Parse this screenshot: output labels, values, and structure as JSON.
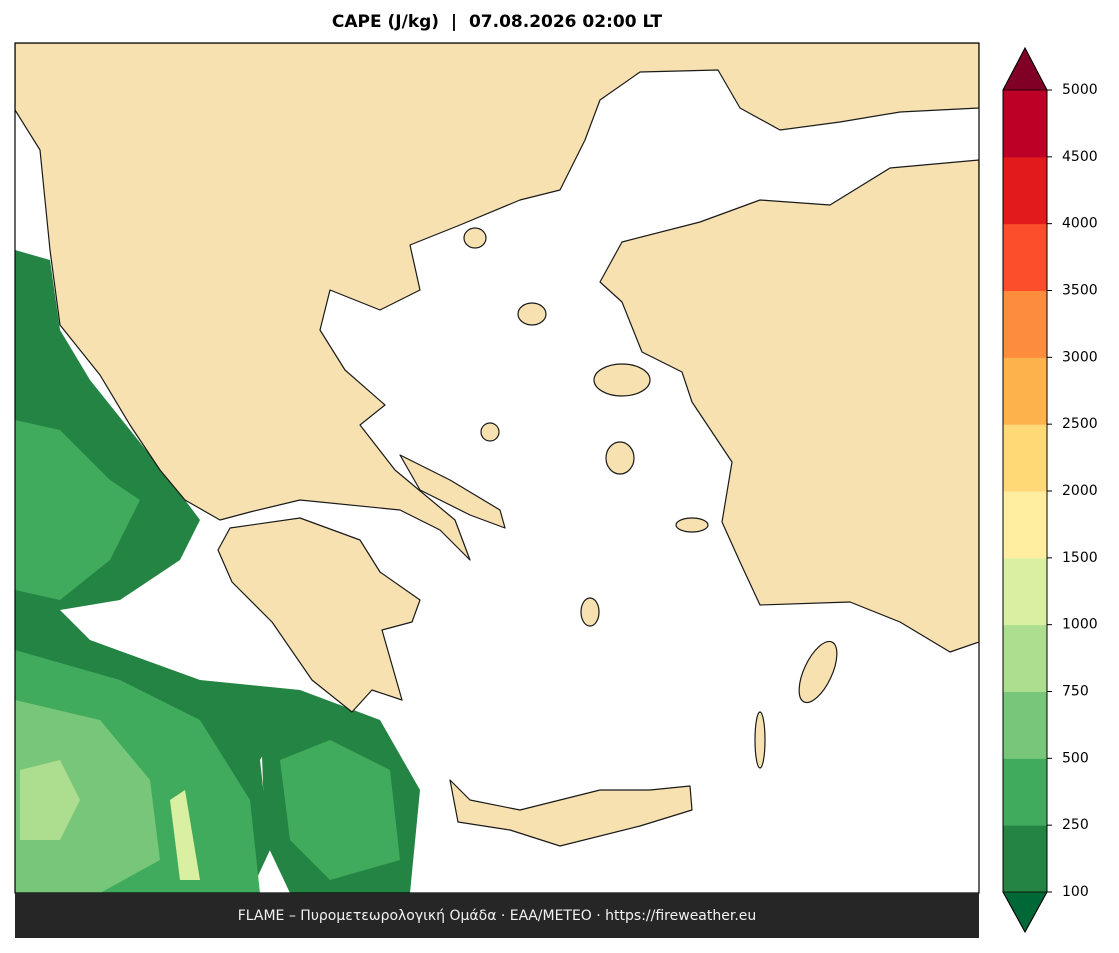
{
  "title": "CAPE (J/kg)  |  07.08.2026 02:00 LT",
  "footer": "FLAME – Πυρομετεωρολογική Ομάδα · ΕΑΑ/METEO · https://fireweather.eu",
  "colorbar": {
    "ticks": [
      100,
      250,
      500,
      750,
      1000,
      1500,
      2000,
      2500,
      3000,
      3500,
      4000,
      4500,
      5000
    ],
    "colors": [
      "#238443",
      "#41ab5d",
      "#78c679",
      "#addd8e",
      "#d9f0a3",
      "#ffeda0",
      "#fed976",
      "#feb24c",
      "#fd8d3c",
      "#fc4e2a",
      "#e31a1c",
      "#bd0026"
    ],
    "under_color": "#006837",
    "over_color": "#800026"
  }
}
